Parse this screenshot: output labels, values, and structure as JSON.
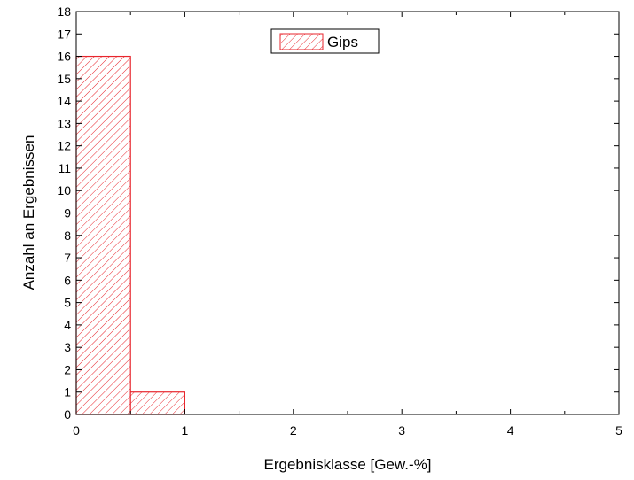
{
  "chart_data": {
    "type": "bar",
    "title": "",
    "xlabel": "Ergebnisklasse [Gew.-%]",
    "ylabel": "Anzahl an Ergebnissen",
    "xlim": [
      0,
      5
    ],
    "ylim": [
      0,
      18
    ],
    "x_ticks": [
      "0",
      "1",
      "2",
      "3",
      "4",
      "5"
    ],
    "y_ticks": [
      "0",
      "1",
      "2",
      "3",
      "4",
      "5",
      "6",
      "7",
      "8",
      "9",
      "10",
      "11",
      "12",
      "13",
      "14",
      "15",
      "16",
      "17",
      "18"
    ],
    "bin_width": 0.5,
    "series": [
      {
        "name": "Gips",
        "color": "#e8262d",
        "fill": "diagonal-hatch",
        "bins": [
          {
            "start": 0,
            "end": 0.5,
            "count": 16
          },
          {
            "start": 0.5,
            "end": 1,
            "count": 1
          }
        ]
      }
    ],
    "legend_position": "top-center",
    "grid": false
  }
}
